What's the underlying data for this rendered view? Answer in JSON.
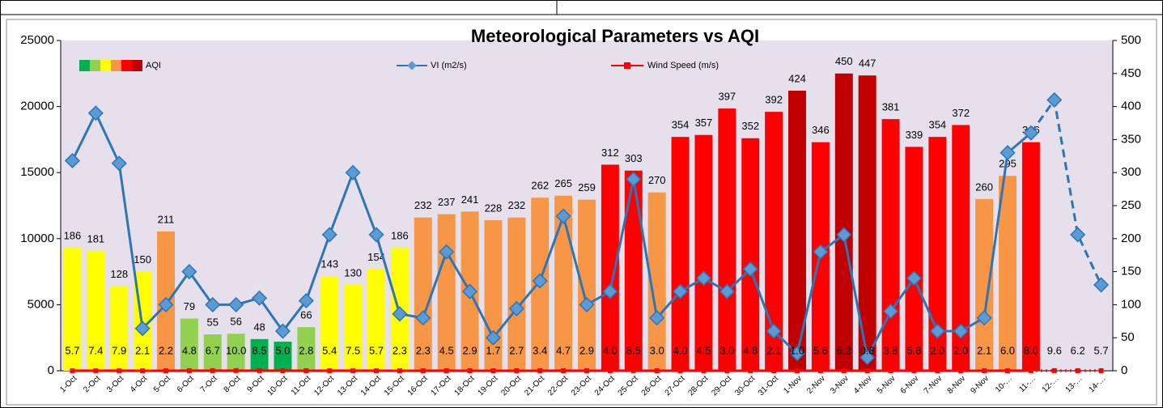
{
  "chart_data": {
    "type": "bar-line-combo",
    "title": "Meteorological Parameters vs AQI",
    "categories": [
      "1-Oct",
      "2-Oct",
      "3-Oct",
      "4-Oct",
      "5-Oct",
      "6-Oct",
      "7-Oct",
      "8-Oct",
      "9-Oct",
      "10-Oct",
      "11-Oct",
      "12-Oct",
      "13-Oct",
      "14-Oct",
      "15-Oct",
      "16-Oct",
      "17-Oct",
      "18-Oct",
      "19-Oct",
      "20-Oct",
      "21-Oct",
      "22-Oct",
      "23-Oct",
      "24-Oct",
      "25-Oct",
      "26-Oct",
      "27-Oct",
      "28-Oct",
      "29-Oct",
      "30-Oct",
      "31-Oct",
      "1-Nov",
      "2-Nov",
      "3-Nov",
      "4-Nov",
      "5-Nov",
      "6-Nov",
      "7-Nov",
      "8-Nov",
      "9-Nov",
      "10-…",
      "11-…",
      "12-…",
      "13-…",
      "14-…"
    ],
    "ylim": [
      0,
      25000
    ],
    "yticks": [
      0,
      5000,
      10000,
      15000,
      20000,
      25000
    ],
    "y2lim": [
      0,
      500
    ],
    "y2ticks": [
      0,
      50,
      100,
      150,
      200,
      250,
      300,
      350,
      400,
      450,
      500
    ],
    "background": "#e6e0ec",
    "dashed_from": "11-…",
    "aqi_scale_colors": [
      "#00b050",
      "#92d050",
      "#ffff00",
      "#f79646",
      "#ff0000",
      "#c00000"
    ],
    "series": [
      {
        "name": "AQI",
        "type": "bar",
        "axis": "y2",
        "values": [
          186,
          181,
          128,
          150,
          211,
          79,
          55,
          56,
          48,
          44,
          66,
          143,
          130,
          154,
          186,
          232,
          237,
          241,
          228,
          232,
          262,
          265,
          259,
          312,
          303,
          270,
          354,
          357,
          397,
          352,
          392,
          424,
          346,
          450,
          447,
          381,
          339,
          354,
          372,
          260,
          295,
          346,
          null,
          null,
          null
        ],
        "colors": [
          "#ffff00",
          "#ffff00",
          "#ffff00",
          "#ffff00",
          "#f79646",
          "#92d050",
          "#92d050",
          "#92d050",
          "#00b050",
          "#00b050",
          "#92d050",
          "#ffff00",
          "#ffff00",
          "#ffff00",
          "#ffff00",
          "#f79646",
          "#f79646",
          "#f79646",
          "#f79646",
          "#f79646",
          "#f79646",
          "#f79646",
          "#f79646",
          "#ff0000",
          "#ff0000",
          "#f79646",
          "#ff0000",
          "#ff0000",
          "#ff0000",
          "#ff0000",
          "#ff0000",
          "#c00000",
          "#ff0000",
          "#c00000",
          "#c00000",
          "#ff0000",
          "#ff0000",
          "#ff0000",
          "#ff0000",
          "#f79646",
          "#f79646",
          "#ff0000",
          null,
          null,
          null
        ]
      },
      {
        "name": "VI (m2/s)",
        "type": "line",
        "color": "#2e75b6",
        "values": [
          15900,
          19500,
          15700,
          3200,
          5000,
          7500,
          5000,
          5000,
          5500,
          3000,
          5300,
          10300,
          15000,
          10300,
          4300,
          4000,
          9000,
          6000,
          2500,
          4700,
          6800,
          11700,
          5000,
          6000,
          14500,
          4000,
          6000,
          7000,
          6000,
          7700,
          3000,
          1300,
          9000,
          10300,
          1000,
          4500,
          7000,
          3000,
          3000,
          4000,
          16500,
          18000,
          20500,
          10300,
          6500
        ]
      },
      {
        "name": "Wind Speed (m/s)",
        "type": "line",
        "color": "#ff0000",
        "values": [
          5.7,
          7.4,
          7.9,
          2.1,
          2.2,
          4.8,
          6.7,
          10,
          8.5,
          5,
          2.8,
          5.4,
          7.5,
          5.7,
          2.3,
          2.3,
          4.5,
          2.9,
          1.7,
          2.7,
          3.4,
          4.7,
          2.9,
          4,
          8.5,
          3,
          4,
          4.5,
          3,
          4.8,
          2.1,
          1,
          5.6,
          6.2,
          0.8,
          3.8,
          5.8,
          2,
          2,
          2.1,
          6,
          8,
          9.6,
          6.2,
          5.7
        ],
        "value_labels": [
          "5.7",
          "7.4",
          "7.9",
          "2.1",
          "2.2",
          "4.8",
          "6.7",
          "10.0",
          "8.5",
          "5.0",
          "2.8",
          "5.4",
          "7.5",
          "5.7",
          "2.3",
          "2.3",
          "4.5",
          "2.9",
          "1.7",
          "2.7",
          "3.4",
          "4.7",
          "2.9",
          "4.0",
          "8.5",
          "3.0",
          "4.0",
          "4.5",
          "3.0",
          "4.8",
          "2.1",
          "1.0",
          "5.6",
          "6.2",
          "0.8",
          "3.8",
          "5.8",
          "2.0",
          "2.0",
          "2.1",
          "6.0",
          "8.0",
          "9.6",
          "6.2",
          "5.7"
        ]
      }
    ]
  }
}
